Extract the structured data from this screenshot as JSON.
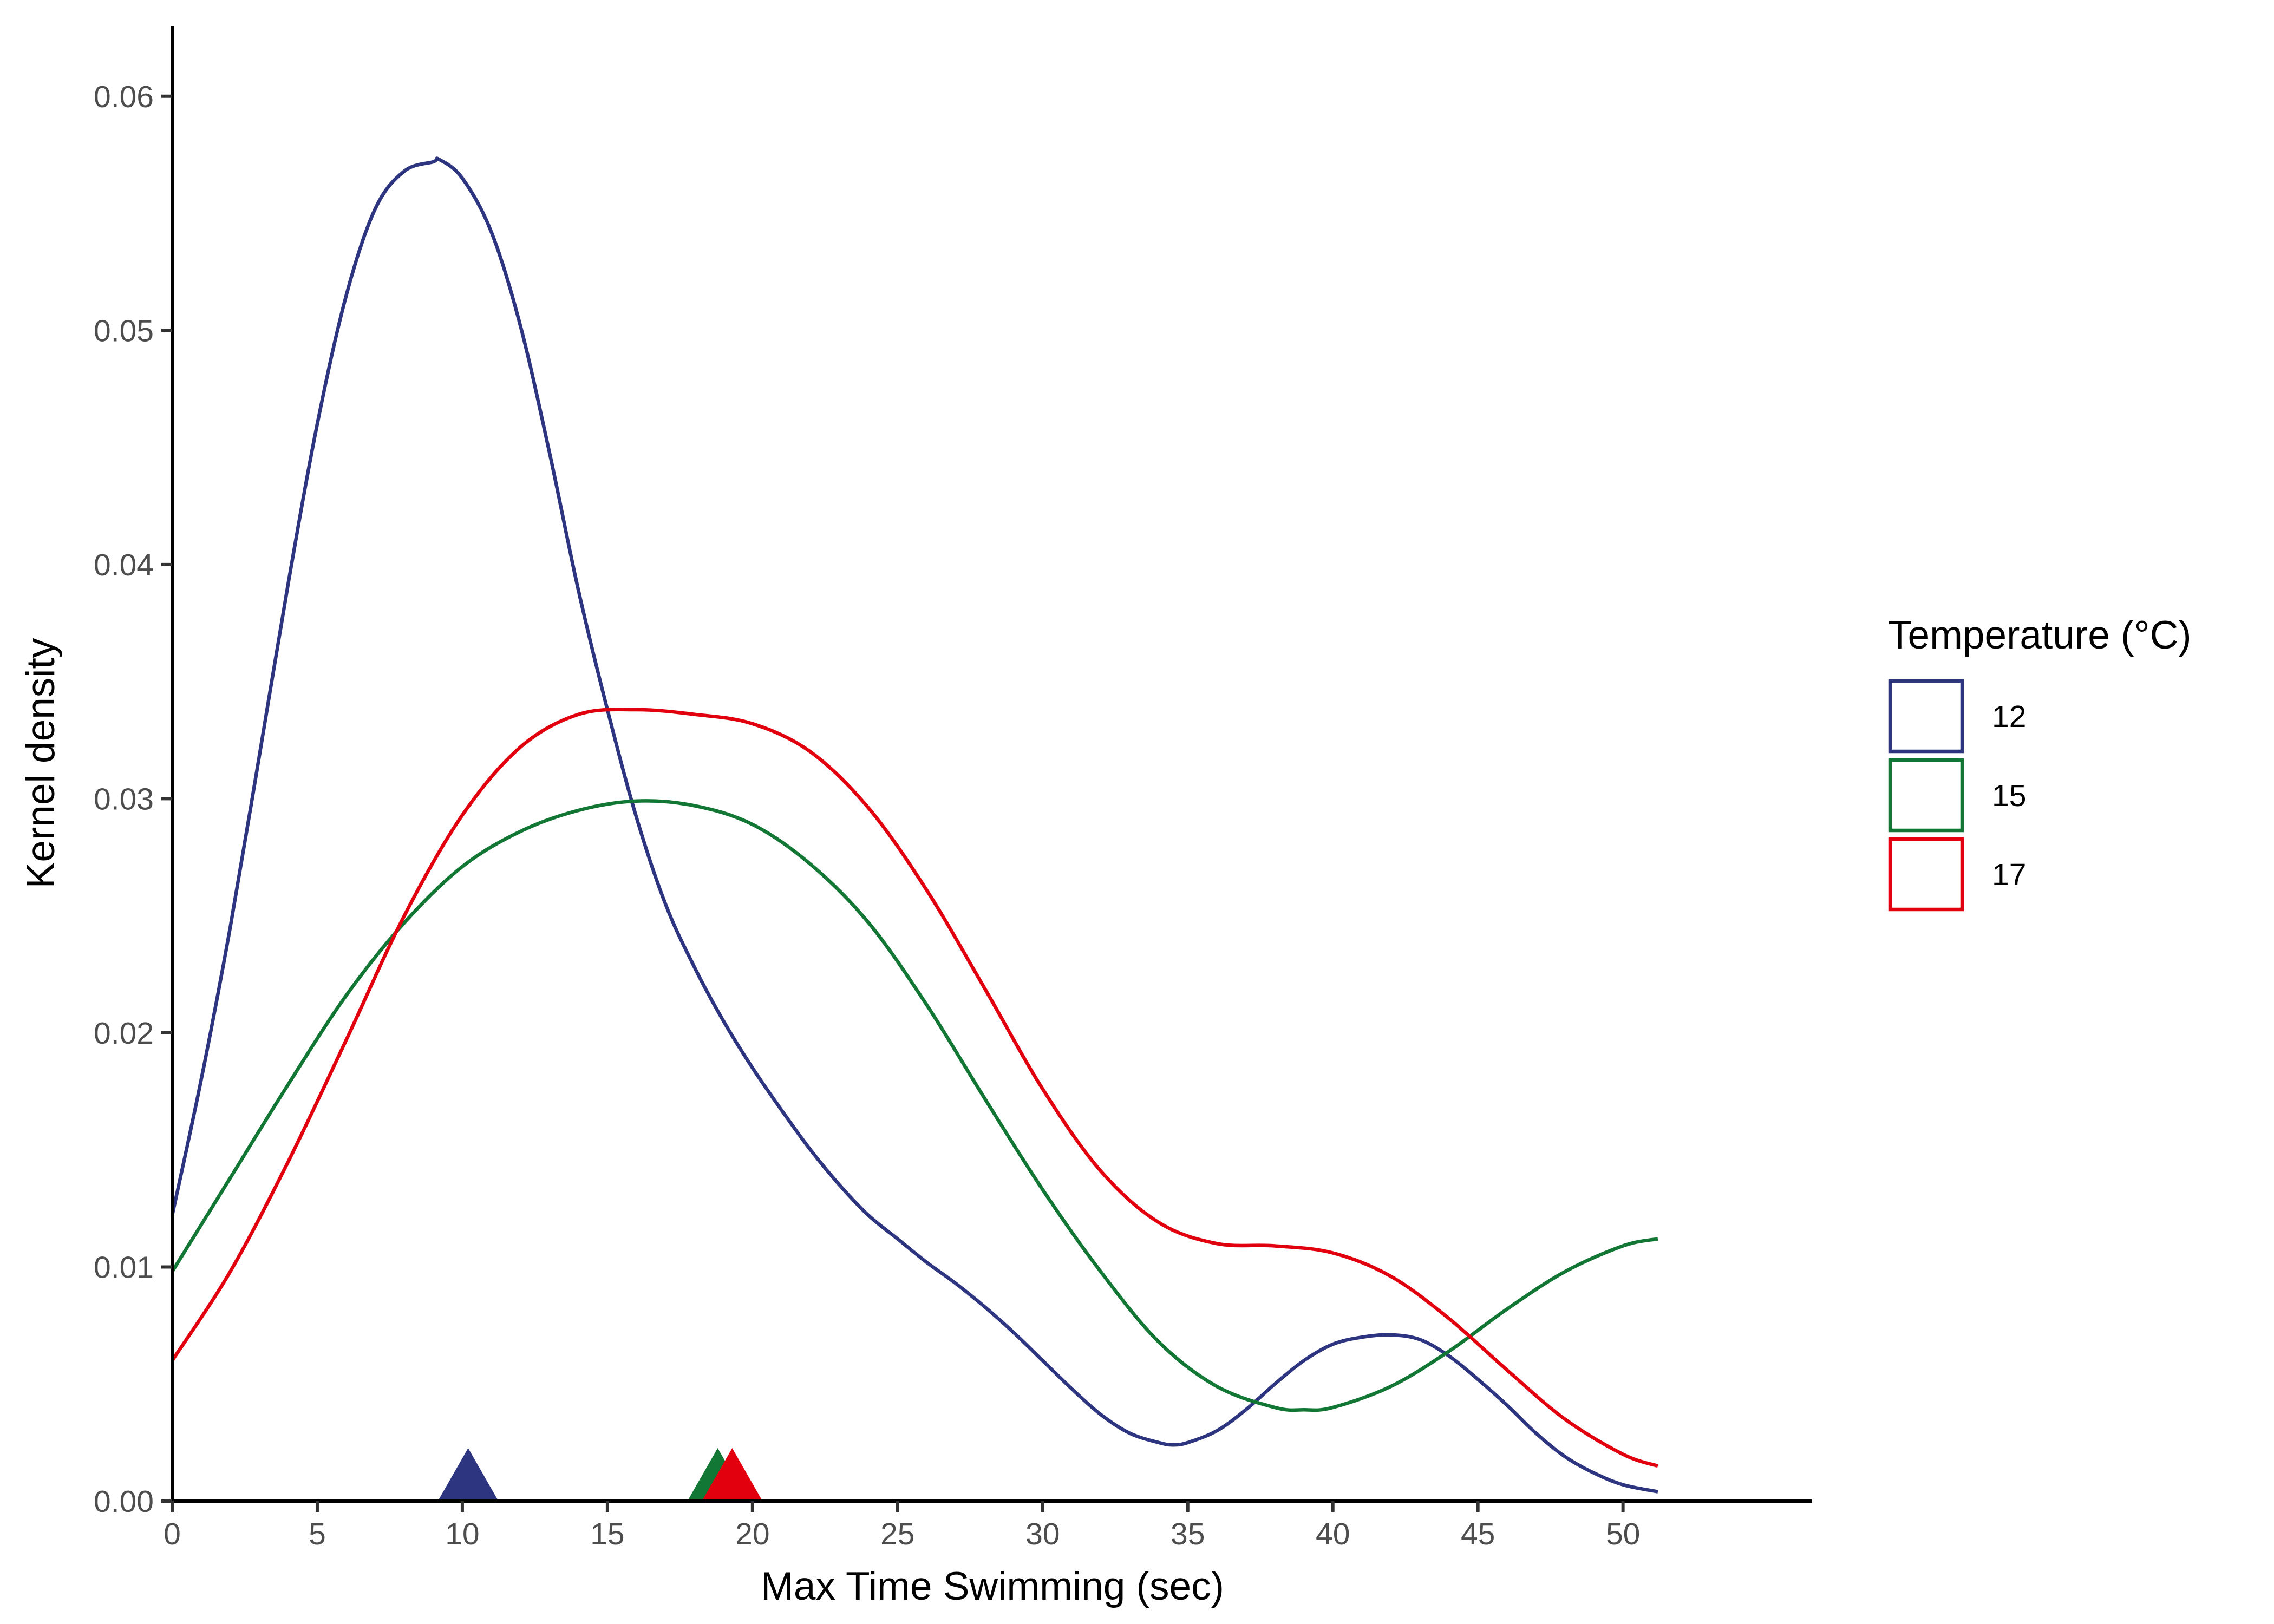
{
  "chart_data": {
    "type": "line",
    "title": "",
    "xlabel": "Max Time Swimming (sec)",
    "ylabel": "Kernel density",
    "xlim": [
      0,
      56.5
    ],
    "ylim": [
      0,
      0.063
    ],
    "xticks": [
      0,
      5,
      10,
      15,
      20,
      25,
      30,
      35,
      40,
      45,
      50
    ],
    "xtick_labels": [
      "0",
      "5",
      "10",
      "15",
      "20",
      "25",
      "30",
      "35",
      "40",
      "45",
      "50"
    ],
    "yticks": [
      0,
      0.01,
      0.02,
      0.03,
      0.04,
      0.05,
      0.06
    ],
    "ytick_labels": [
      "0.00",
      "0.01",
      "0.02",
      "0.03",
      "0.04",
      "0.05",
      "0.06"
    ],
    "grid": false,
    "legend": {
      "title": "Temperature (°C)",
      "placement": "right"
    },
    "series": [
      {
        "name": "12",
        "color": "#2E3580",
        "mean_marker_x": 10.2,
        "x": [
          0,
          1,
          2,
          3,
          4,
          5,
          6,
          7,
          8,
          9,
          9.2,
          10,
          11,
          12,
          13,
          14,
          15,
          16,
          17,
          18,
          19,
          20,
          21,
          22,
          23,
          24,
          25,
          26,
          27,
          28,
          29,
          30,
          31,
          32,
          33,
          34,
          34.5,
          35,
          36,
          37,
          38,
          39,
          40,
          41,
          42,
          43,
          44,
          45,
          46,
          47,
          48,
          49,
          50,
          51.2
        ],
        "values": [
          0.0122,
          0.018,
          0.0245,
          0.0318,
          0.0392,
          0.046,
          0.0515,
          0.0552,
          0.0568,
          0.0572,
          0.0573,
          0.0565,
          0.0542,
          0.0502,
          0.0448,
          0.0389,
          0.0338,
          0.0292,
          0.0255,
          0.0228,
          0.0205,
          0.0185,
          0.0167,
          0.015,
          0.0135,
          0.0122,
          0.0112,
          0.0102,
          0.0093,
          0.0083,
          0.0072,
          0.006,
          0.0048,
          0.0037,
          0.0029,
          0.0025,
          0.0024,
          0.0025,
          0.003,
          0.0039,
          0.005,
          0.006,
          0.0067,
          0.007,
          0.0071,
          0.0069,
          0.0062,
          0.0052,
          0.0041,
          0.0029,
          0.0019,
          0.0012,
          0.0007,
          0.0004
        ]
      },
      {
        "name": "15",
        "color": "#127734",
        "mean_marker_x": 18.8,
        "x": [
          0,
          2,
          4,
          6,
          8,
          10,
          12,
          14,
          16,
          18,
          20,
          22,
          24,
          26,
          28,
          30,
          32,
          34,
          36,
          38,
          39,
          40,
          42,
          44,
          46,
          48,
          50,
          51.2
        ],
        "values": [
          0.0098,
          0.0138,
          0.0178,
          0.0216,
          0.0247,
          0.0271,
          0.0286,
          0.0295,
          0.0299,
          0.0297,
          0.0289,
          0.0272,
          0.0247,
          0.0212,
          0.0172,
          0.0133,
          0.0098,
          0.0068,
          0.0049,
          0.004,
          0.0039,
          0.004,
          0.0049,
          0.0064,
          0.0082,
          0.0098,
          0.0109,
          0.0112
        ]
      },
      {
        "name": "17",
        "color": "#E2000F",
        "mean_marker_x": 19.3,
        "x": [
          0,
          2,
          4,
          6,
          8,
          10,
          12,
          14,
          16,
          18,
          20,
          22,
          24,
          26,
          28,
          30,
          32,
          34,
          36,
          38,
          40,
          42,
          44,
          46,
          48,
          50,
          51.2
        ],
        "values": [
          0.006,
          0.0098,
          0.0145,
          0.0197,
          0.025,
          0.0293,
          0.0322,
          0.0336,
          0.0338,
          0.0336,
          0.0332,
          0.032,
          0.0296,
          0.0261,
          0.0219,
          0.0176,
          0.0141,
          0.0119,
          0.011,
          0.0109,
          0.0106,
          0.0096,
          0.0078,
          0.0056,
          0.0035,
          0.002,
          0.0015
        ]
      }
    ]
  }
}
